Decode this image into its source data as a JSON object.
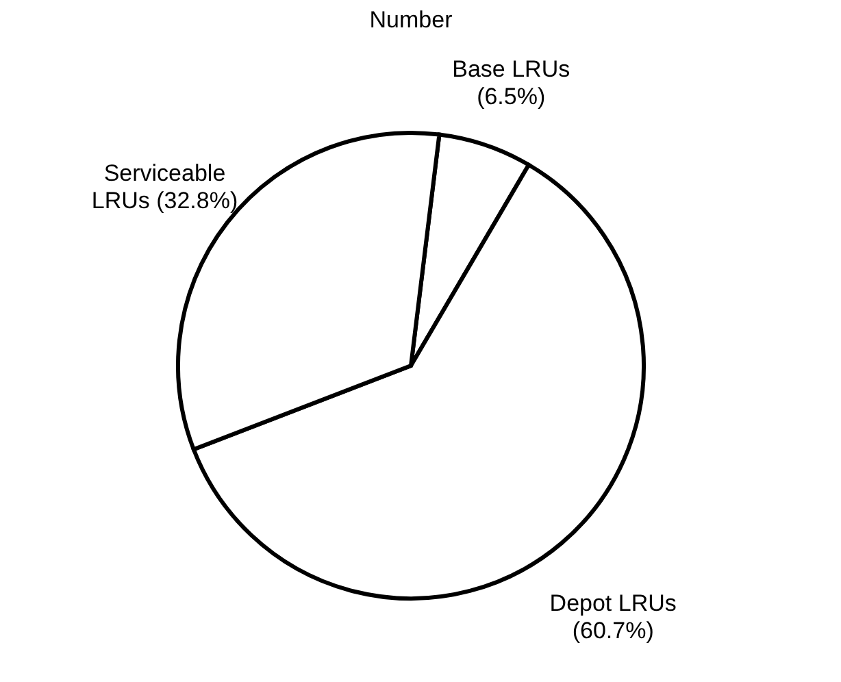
{
  "chart_data": {
    "type": "pie",
    "title": "Number",
    "categories": [
      "Base LRUs",
      "Depot LRUs",
      "Serviceable LRUs"
    ],
    "values": [
      6.5,
      60.7,
      32.8
    ],
    "value_labels": [
      "(6.5%)",
      "(60.7%)",
      "(32.8%)"
    ],
    "colors": [
      "#ffffff",
      "#ffffff",
      "#ffffff"
    ],
    "legend": false
  }
}
